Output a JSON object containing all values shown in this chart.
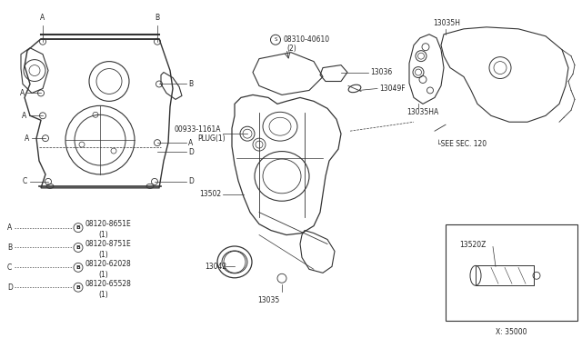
{
  "bg_color": "#ffffff",
  "line_color": "#333333",
  "text_color": "#222222",
  "legend_items": [
    {
      "label": "A",
      "part": "08120-8651E",
      "qty": "(1)"
    },
    {
      "label": "B",
      "part": "08120-8751E",
      "qty": "(1)"
    },
    {
      "label": "C",
      "part": "08120-62028",
      "qty": "(1)"
    },
    {
      "label": "D",
      "part": "08120-65528",
      "qty": "(1)"
    }
  ],
  "small_box_label": "13520Z",
  "x_label": "X: 35000"
}
